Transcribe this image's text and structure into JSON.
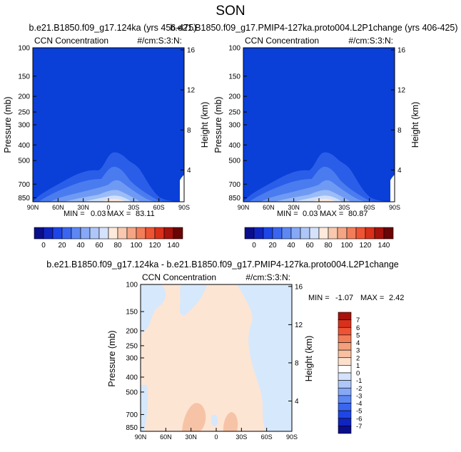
{
  "page_title": "SON",
  "colors": {
    "base_blue": "#0a3fd8",
    "plume_levels": [
      "#2a5ee8",
      "#4a7cf0",
      "#6f9af4",
      "#9bbcf6",
      "#cfe0fb",
      "#fde6d8"
    ],
    "diff_pos": "#fde5d4",
    "diff_neg": "#d6e8fb",
    "diff_pos_strong": "#f7c3a6"
  },
  "palette": {
    "abs_colors": [
      "#0b0e8a",
      "#1024c0",
      "#1e46e6",
      "#3a66ef",
      "#5d88f3",
      "#86a8f6",
      "#afc6f8",
      "#d5e2fb",
      "#fdeadb",
      "#f8c9ae",
      "#f5a583",
      "#f27e59",
      "#ee5433",
      "#d9301b",
      "#a6120c",
      "#6b0404"
    ],
    "diff_colors": [
      "#0b0e8a",
      "#1024c0",
      "#1e46e6",
      "#3a66ef",
      "#5d88f3",
      "#86a8f6",
      "#afc6f8",
      "#d5e2fb",
      "#ffffff",
      "#fde0cc",
      "#f8bfa1",
      "#f5a07c",
      "#f27e59",
      "#ee5433",
      "#d9301b",
      "#a6120c"
    ]
  },
  "chart_data": [
    {
      "type": "heatmap",
      "title": "b.e21.B1850.f09_g17.124ka (yrs 456-475)",
      "left_label": "CCN Concentration",
      "right_label": "#/cm:S:3:N:",
      "ylabel": "Pressure (mb)",
      "y2label": "Height (km)",
      "x_ticks": [
        "90N",
        "60N",
        "30N",
        "0",
        "30S",
        "60S",
        "90S"
      ],
      "y_ticks": [
        "100",
        "150",
        "200",
        "250",
        "300",
        "400",
        "500",
        "700",
        "850"
      ],
      "y2_ticks": [
        "16",
        "12",
        "8",
        "4"
      ],
      "stats": {
        "min_label": "MIN =",
        "min": "0.03",
        "max_label": "MAX =",
        "max": "83.11"
      },
      "colorbar_ticks": [
        "0",
        "20",
        "40",
        "60",
        "80",
        "100",
        "120",
        "140"
      ]
    },
    {
      "type": "heatmap",
      "title": "b.e21.B1850.f09_g17.PMIP4-127ka.proto004.L2P1change (yrs 406-425)",
      "left_label": "CCN Concentration",
      "right_label": "#/cm:S:3:N:",
      "ylabel": "Pressure (mb)",
      "y2label": "Height (km)",
      "x_ticks": [
        "90N",
        "60N",
        "30N",
        "0",
        "30S",
        "60S",
        "90S"
      ],
      "y_ticks": [
        "100",
        "150",
        "200",
        "250",
        "300",
        "400",
        "500",
        "700",
        "850"
      ],
      "y2_ticks": [
        "16",
        "12",
        "8",
        "4"
      ],
      "stats": {
        "min_label": "MIN =",
        "min": "0.03",
        "max_label": "MAX =",
        "max": "80.87"
      },
      "colorbar_ticks": [
        "0",
        "20",
        "40",
        "60",
        "80",
        "100",
        "120",
        "140"
      ]
    },
    {
      "type": "heatmap",
      "title": "b.e21.B1850.f09_g17.124ka - b.e21.B1850.f09_g17.PMIP4-127ka.proto004.L2P1change",
      "left_label": "CCN Concentration",
      "right_label": "#/cm:S:3:N:",
      "ylabel": "Pressure (mb)",
      "y2label": "Height (km)",
      "x_ticks": [
        "90N",
        "60N",
        "30N",
        "0",
        "30S",
        "60S",
        "90S"
      ],
      "y_ticks": [
        "100",
        "150",
        "200",
        "250",
        "300",
        "400",
        "500",
        "700",
        "850"
      ],
      "y2_ticks": [
        "16",
        "12",
        "8",
        "4"
      ],
      "stats": {
        "min_label": "MIN =",
        "min": "-1.07",
        "max_label": "MAX =",
        "max": "2.42"
      },
      "colorbar_ticks": [
        "7",
        "6",
        "5",
        "4",
        "3",
        "2",
        "1",
        "0",
        "-1",
        "-2",
        "-3",
        "-4",
        "-5",
        "-6",
        "-7"
      ]
    }
  ]
}
